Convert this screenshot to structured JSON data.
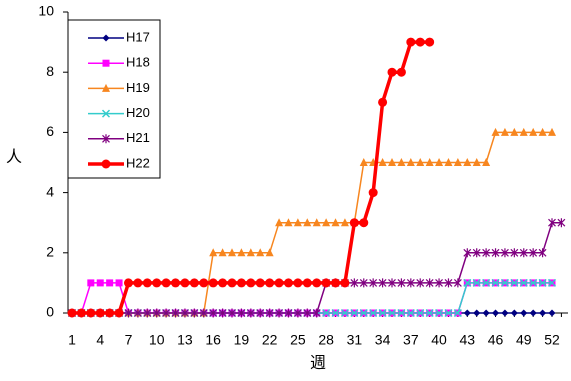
{
  "chart_data": {
    "type": "line",
    "x_label": "週",
    "y_label": "人",
    "categories": [
      "1",
      null,
      null,
      "4",
      null,
      null,
      "7",
      null,
      null,
      "10",
      null,
      null,
      "13",
      null,
      null,
      "16",
      null,
      null,
      "19",
      null,
      null,
      "22",
      null,
      null,
      "25",
      null,
      null,
      "28",
      null,
      null,
      "31",
      null,
      null,
      "34",
      null,
      null,
      "37",
      null,
      null,
      "40",
      null,
      null,
      "43",
      null,
      null,
      "46",
      null,
      null,
      "49",
      null,
      null,
      "52",
      null
    ],
    "ylim": [
      0,
      10
    ],
    "yticks": [
      0,
      2,
      4,
      6,
      8,
      10
    ],
    "grid": false,
    "legend": "upper left",
    "series": [
      {
        "name": "H17",
        "color": "#000080",
        "marker": "diamond",
        "width": 1.5,
        "values": [
          0,
          0,
          0,
          0,
          0,
          0,
          0,
          0,
          0,
          0,
          0,
          0,
          0,
          0,
          0,
          0,
          0,
          0,
          0,
          0,
          0,
          0,
          0,
          0,
          0,
          0,
          0,
          0,
          0,
          0,
          0,
          0,
          0,
          0,
          0,
          0,
          0,
          0,
          0,
          0,
          0,
          0,
          0,
          0,
          0,
          0,
          0,
          0,
          0,
          0,
          0,
          0,
          null
        ]
      },
      {
        "name": "H18",
        "color": "#ff00ff",
        "marker": "square",
        "width": 1.5,
        "values": [
          0,
          0,
          1,
          1,
          1,
          1,
          0,
          0,
          0,
          0,
          0,
          0,
          0,
          0,
          0,
          0,
          0,
          0,
          0,
          0,
          0,
          0,
          0,
          0,
          0,
          0,
          0,
          0,
          0,
          0,
          0,
          0,
          0,
          0,
          0,
          0,
          0,
          0,
          0,
          0,
          0,
          0,
          1,
          1,
          1,
          1,
          1,
          1,
          1,
          1,
          1,
          1,
          null
        ]
      },
      {
        "name": "H19",
        "color": "#f7861f",
        "marker": "triangle",
        "width": 1.5,
        "values": [
          0,
          0,
          0,
          0,
          0,
          0,
          0,
          0,
          0,
          0,
          0,
          0,
          0,
          0,
          0,
          2,
          2,
          2,
          2,
          2,
          2,
          2,
          3,
          3,
          3,
          3,
          3,
          3,
          3,
          3,
          3,
          5,
          5,
          5,
          5,
          5,
          5,
          5,
          5,
          5,
          5,
          5,
          5,
          5,
          5,
          6,
          6,
          6,
          6,
          6,
          6,
          6,
          null
        ]
      },
      {
        "name": "H20",
        "color": "#33cccc",
        "marker": "x",
        "width": 1.5,
        "values": [
          0,
          0,
          0,
          0,
          0,
          0,
          0,
          0,
          0,
          0,
          0,
          0,
          0,
          0,
          0,
          0,
          0,
          0,
          0,
          0,
          0,
          0,
          0,
          0,
          0,
          0,
          0,
          0,
          0,
          0,
          0,
          0,
          0,
          0,
          0,
          0,
          0,
          0,
          0,
          0,
          0,
          0,
          1,
          1,
          1,
          1,
          1,
          1,
          1,
          1,
          1,
          1,
          null
        ]
      },
      {
        "name": "H21",
        "color": "#800080",
        "marker": "star",
        "width": 1.5,
        "values": [
          0,
          0,
          0,
          0,
          0,
          0,
          0,
          0,
          0,
          0,
          0,
          0,
          0,
          0,
          0,
          0,
          0,
          0,
          0,
          0,
          0,
          0,
          0,
          0,
          0,
          0,
          0,
          1,
          1,
          1,
          1,
          1,
          1,
          1,
          1,
          1,
          1,
          1,
          1,
          1,
          1,
          1,
          2,
          2,
          2,
          2,
          2,
          2,
          2,
          2,
          2,
          3,
          3
        ]
      },
      {
        "name": "H22",
        "color": "#ff0000",
        "marker": "circle",
        "width": 3.5,
        "values": [
          0,
          0,
          0,
          0,
          0,
          0,
          1,
          1,
          1,
          1,
          1,
          1,
          1,
          1,
          1,
          1,
          1,
          1,
          1,
          1,
          1,
          1,
          1,
          1,
          1,
          1,
          1,
          1,
          1,
          1,
          3,
          3,
          4,
          7,
          8,
          8,
          9,
          9,
          9,
          null,
          null,
          null,
          null,
          null,
          null,
          null,
          null,
          null,
          null,
          null,
          null,
          null,
          null
        ]
      }
    ]
  }
}
